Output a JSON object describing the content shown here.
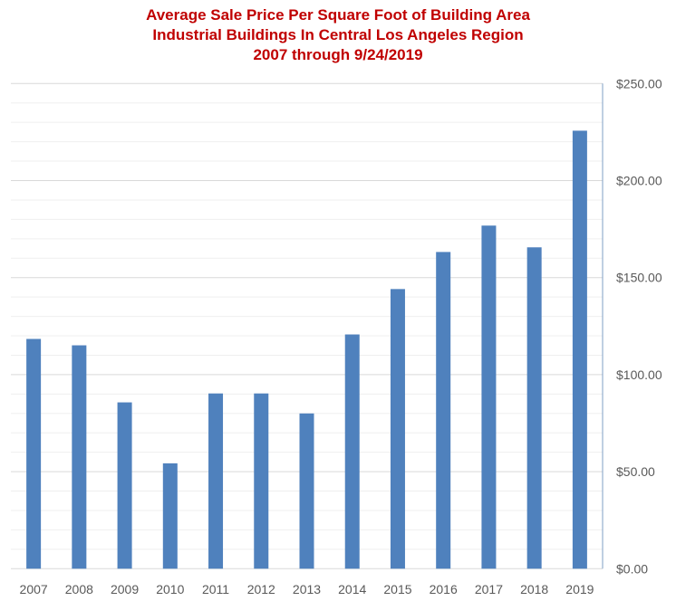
{
  "chart_data": {
    "type": "bar",
    "title": [
      "Average Sale Price Per Square Foot of Building Area",
      "Industrial Buildings In Central Los Angeles Region",
      "2007 through 9/24/2019"
    ],
    "xlabel": "",
    "ylabel": "",
    "categories": [
      "2007",
      "2008",
      "2009",
      "2010",
      "2011",
      "2012",
      "2013",
      "2014",
      "2015",
      "2016",
      "2017",
      "2018",
      "2019"
    ],
    "values": [
      118.4,
      115.1,
      85.7,
      54.3,
      90.3,
      90.3,
      80.0,
      120.7,
      144.1,
      163.2,
      176.8,
      165.6,
      225.7
    ],
    "ylim": [
      0,
      250
    ],
    "yticks": [
      0,
      50,
      100,
      150,
      200,
      250
    ],
    "ytick_labels": [
      "$0.00",
      "$50.00",
      "$100.00",
      "$150.00",
      "$200.00",
      "$250.00"
    ],
    "y_axis_position": "right",
    "minor_grid_step": 10,
    "grid": true,
    "bar_color": "#4f81bd",
    "title_color": "#c00000"
  }
}
